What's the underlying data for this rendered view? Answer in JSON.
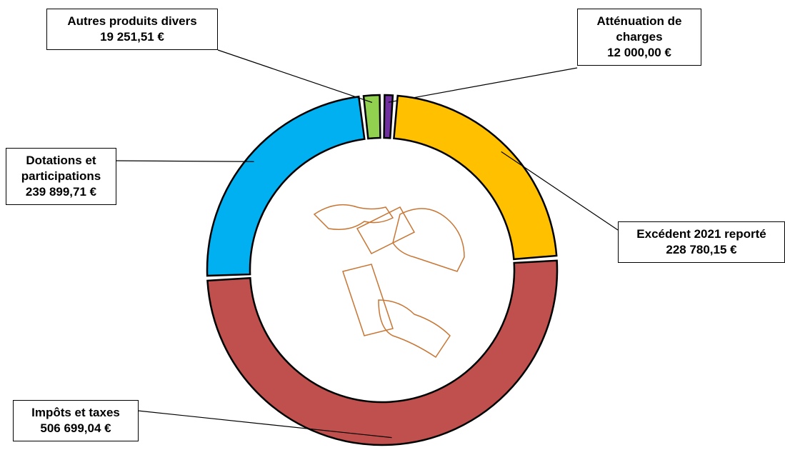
{
  "chart_data": {
    "type": "donut",
    "categories": [
      "Atténuation de charges",
      "Excédent 2021 reporté",
      "Impôts et taxes",
      "Dotations et participations",
      "Autres produits divers"
    ],
    "values": [
      12000.0,
      228780.15,
      506699.04,
      239899.71,
      19251.51
    ],
    "value_labels": [
      "12 000,00 €",
      "228 780,15 €",
      "506 699,04 €",
      "239 899,71 €",
      "19 251,51 €"
    ],
    "colors": [
      "#7030a0",
      "#ffc000",
      "#c0504d",
      "#00b0f0",
      "#92d050"
    ]
  }
}
